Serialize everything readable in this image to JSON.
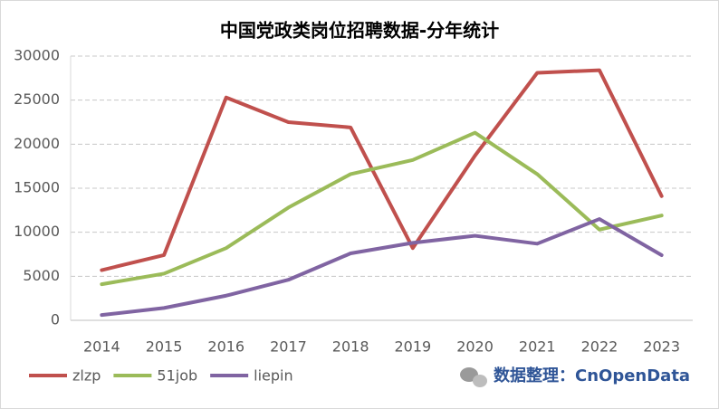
{
  "chart_data": {
    "type": "line",
    "title": "中国党政类岗位招聘数据-分年统计",
    "categories": [
      "2014",
      "2015",
      "2016",
      "2017",
      "2018",
      "2019",
      "2020",
      "2021",
      "2022",
      "2023"
    ],
    "series": [
      {
        "name": "zlzp",
        "color": "#c0504d",
        "values": [
          5700,
          7400,
          25300,
          22500,
          21900,
          8200,
          18700,
          28100,
          28400,
          14100
        ]
      },
      {
        "name": "51job",
        "color": "#9bbb59",
        "values": [
          4100,
          5300,
          8200,
          12800,
          16600,
          18200,
          21300,
          16600,
          10300,
          11900
        ]
      },
      {
        "name": "liepin",
        "color": "#8064a2",
        "values": [
          600,
          1400,
          2800,
          4600,
          7600,
          8800,
          9600,
          8700,
          11500,
          7400
        ]
      }
    ],
    "ylim": [
      0,
      30000
    ],
    "yticks": [
      0,
      5000,
      10000,
      15000,
      20000,
      25000,
      30000
    ],
    "grid": true,
    "legend": "bottom-left",
    "annotation": "数据整理：CnOpenData"
  }
}
